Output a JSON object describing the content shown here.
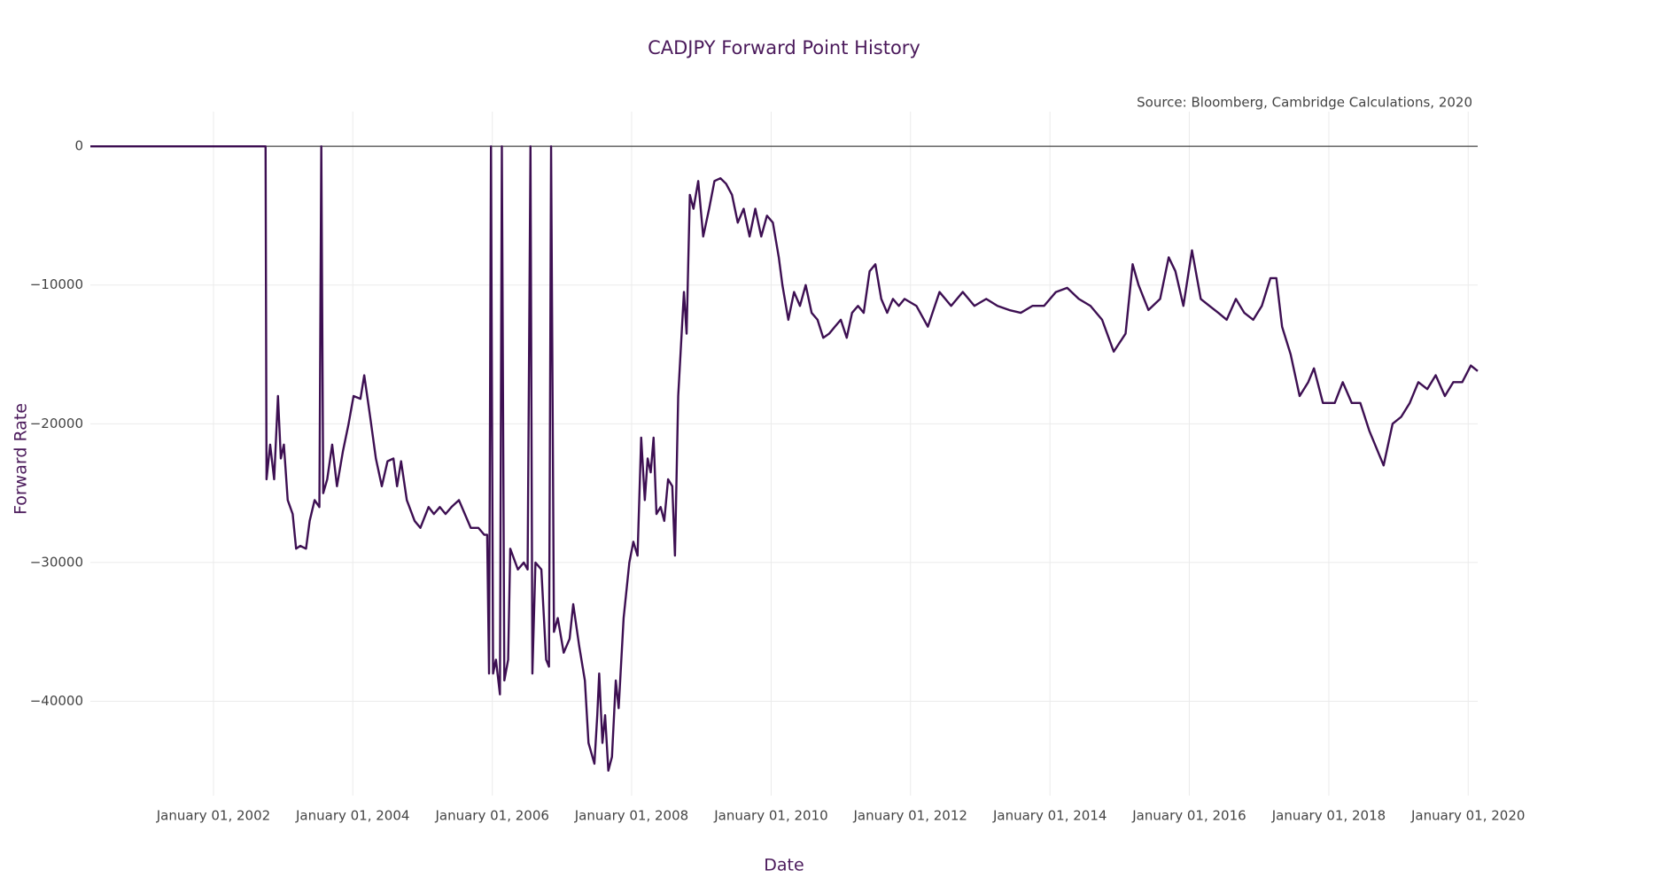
{
  "chart_data": {
    "type": "line",
    "title": "CADJPY Forward Point History",
    "annotation": "Source: Bloomberg, Cambridge Calculations, 2020",
    "x_label": "Date",
    "y_label": "Forward Rate",
    "grid": true,
    "xlim": [
      "2000-03-27",
      "2020-02-20"
    ],
    "ylim": [
      -46800,
      2500
    ],
    "xticks": [
      {
        "value": "2002-01-01",
        "label": "January 01, 2002"
      },
      {
        "value": "2004-01-01",
        "label": "January 01, 2004"
      },
      {
        "value": "2006-01-01",
        "label": "January 01, 2006"
      },
      {
        "value": "2008-01-01",
        "label": "January 01, 2008"
      },
      {
        "value": "2010-01-01",
        "label": "January 01, 2010"
      },
      {
        "value": "2012-01-01",
        "label": "January 01, 2012"
      },
      {
        "value": "2014-01-01",
        "label": "January 01, 2014"
      },
      {
        "value": "2016-01-01",
        "label": "January 01, 2016"
      },
      {
        "value": "2018-01-01",
        "label": "January 01, 2018"
      },
      {
        "value": "2020-01-01",
        "label": "January 01, 2020"
      }
    ],
    "yticks": [
      0,
      {
        "value": -10000,
        "label": "−10000"
      },
      {
        "value": -20000,
        "label": "−20000"
      },
      {
        "value": -30000,
        "label": "−30000"
      },
      {
        "value": -40000,
        "label": "−40000"
      }
    ],
    "x": [
      "2000-03-27",
      "2002-10-01",
      "2002-10-06",
      "2002-10-25",
      "2002-11-15",
      "2002-12-05",
      "2002-12-20",
      "2003-01-05",
      "2003-01-25",
      "2003-02-20",
      "2003-03-10",
      "2003-04-01",
      "2003-05-01",
      "2003-05-20",
      "2003-06-15",
      "2003-07-10",
      "2003-07-20",
      "2003-07-30",
      "2003-08-20",
      "2003-09-15",
      "2003-10-10",
      "2003-11-10",
      "2003-12-10",
      "2004-01-05",
      "2004-02-10",
      "2004-03-01",
      "2004-04-01",
      "2004-05-01",
      "2004-06-01",
      "2004-07-01",
      "2004-08-01",
      "2004-08-20",
      "2004-09-10",
      "2004-10-10",
      "2004-11-20",
      "2004-12-20",
      "2005-02-01",
      "2005-03-01",
      "2005-04-01",
      "2005-05-01",
      "2005-06-01",
      "2005-07-10",
      "2005-08-10",
      "2005-09-10",
      "2005-10-20",
      "2005-11-20",
      "2005-12-05",
      "2005-12-15",
      "2005-12-25",
      "2006-01-05",
      "2006-01-20",
      "2006-02-10",
      "2006-02-20",
      "2006-03-05",
      "2006-03-25",
      "2006-04-05",
      "2006-05-15",
      "2006-06-15",
      "2006-07-05",
      "2006-07-20",
      "2006-07-30",
      "2006-08-15",
      "2006-09-15",
      "2006-10-10",
      "2006-10-25",
      "2006-11-05",
      "2006-11-20",
      "2006-12-10",
      "2007-01-10",
      "2007-02-10",
      "2007-03-01",
      "2007-04-01",
      "2007-05-01",
      "2007-05-20",
      "2007-06-20",
      "2007-07-05",
      "2007-07-15",
      "2007-08-01",
      "2007-08-15",
      "2007-09-01",
      "2007-09-20",
      "2007-10-10",
      "2007-10-25",
      "2007-11-20",
      "2007-12-20",
      "2008-01-10",
      "2008-02-01",
      "2008-02-20",
      "2008-03-10",
      "2008-03-25",
      "2008-04-10",
      "2008-04-25",
      "2008-05-10",
      "2008-06-01",
      "2008-06-20",
      "2008-07-10",
      "2008-08-01",
      "2008-08-15",
      "2008-09-01",
      "2008-10-01",
      "2008-10-15",
      "2008-11-01",
      "2008-11-20",
      "2008-12-15",
      "2009-01-10",
      "2009-02-10",
      "2009-03-10",
      "2009-04-10",
      "2009-05-10",
      "2009-06-10",
      "2009-07-10",
      "2009-08-10",
      "2009-09-10",
      "2009-10-10",
      "2009-11-10",
      "2009-12-10",
      "2010-01-10",
      "2010-02-10",
      "2010-03-01",
      "2010-04-01",
      "2010-05-01",
      "2010-06-01",
      "2010-07-01",
      "2010-08-01",
      "2010-09-01",
      "2010-10-01",
      "2010-11-01",
      "2010-12-01",
      "2011-01-01",
      "2011-02-01",
      "2011-03-01",
      "2011-04-01",
      "2011-05-01",
      "2011-06-01",
      "2011-07-01",
      "2011-08-01",
      "2011-09-01",
      "2011-10-01",
      "2011-11-01",
      "2011-12-01",
      "2012-02-01",
      "2012-04-01",
      "2012-06-01",
      "2012-08-01",
      "2012-10-01",
      "2012-12-01",
      "2013-02-01",
      "2013-04-01",
      "2013-06-01",
      "2013-08-01",
      "2013-10-01",
      "2013-12-01",
      "2014-02-01",
      "2014-04-01",
      "2014-06-01",
      "2014-08-01",
      "2014-10-01",
      "2014-12-01",
      "2015-02-01",
      "2015-03-10",
      "2015-04-10",
      "2015-06-01",
      "2015-08-01",
      "2015-09-15",
      "2015-10-20",
      "2015-12-01",
      "2016-01-15",
      "2016-03-01",
      "2016-04-15",
      "2016-06-01",
      "2016-07-15",
      "2016-09-01",
      "2016-10-15",
      "2016-12-01",
      "2017-01-15",
      "2017-03-01",
      "2017-04-01",
      "2017-05-01",
      "2017-06-15",
      "2017-08-01",
      "2017-09-15",
      "2017-10-15",
      "2017-12-01",
      "2018-02-01",
      "2018-03-15",
      "2018-05-01",
      "2018-06-15",
      "2018-08-01",
      "2018-09-15",
      "2018-10-15",
      "2018-12-01",
      "2019-01-15",
      "2019-03-01",
      "2019-04-15",
      "2019-06-01",
      "2019-07-15",
      "2019-09-01",
      "2019-10-15",
      "2019-12-01",
      "2020-01-15",
      "2020-02-20"
    ],
    "series": [
      {
        "color": "#3d0f52",
        "values": [
          0,
          0,
          -24000,
          -21500,
          -24000,
          -18000,
          -22500,
          -21500,
          -25500,
          -26500,
          -29000,
          -28800,
          -29000,
          -27000,
          -25500,
          -26000,
          0,
          -25000,
          -24000,
          -21500,
          -24500,
          -22000,
          -20000,
          -18000,
          -18200,
          -16500,
          -19500,
          -22500,
          -24500,
          -22700,
          -22500,
          -24500,
          -22700,
          -25500,
          -27000,
          -27500,
          -26000,
          -26500,
          -26000,
          -26500,
          -26000,
          -25500,
          -26500,
          -27500,
          -27500,
          -28000,
          -28000,
          -38000,
          0,
          -38000,
          -37000,
          -39500,
          0,
          -38500,
          -37000,
          -29000,
          -30500,
          -30000,
          -30500,
          0,
          -38000,
          -30000,
          -30500,
          -37000,
          -37500,
          0,
          -35000,
          -34000,
          -36500,
          -35500,
          -33000,
          -36000,
          -38500,
          -43000,
          -44500,
          -41000,
          -38000,
          -43000,
          -41000,
          -45000,
          -44000,
          -38500,
          -40500,
          -34000,
          -30000,
          -28500,
          -29500,
          -21000,
          -25500,
          -22500,
          -23500,
          -21000,
          -26500,
          -26000,
          -27000,
          -24000,
          -24500,
          -29500,
          -18000,
          -10500,
          -13500,
          -3500,
          -4500,
          -2500,
          -6500,
          -4500,
          -2500,
          -2300,
          -2700,
          -3500,
          -5500,
          -4500,
          -6500,
          -4500,
          -6500,
          -5000,
          -5500,
          -8000,
          -10000,
          -12500,
          -10500,
          -11500,
          -10000,
          -12000,
          -12500,
          -13800,
          -13500,
          -13000,
          -12500,
          -13800,
          -12000,
          -11500,
          -12000,
          -9000,
          -8500,
          -11000,
          -12000,
          -11000,
          -11500,
          -11000,
          -11500,
          -13000,
          -10500,
          -11500,
          -10500,
          -11500,
          -11000,
          -11500,
          -11800,
          -12000,
          -11500,
          -11500,
          -10500,
          -10200,
          -11000,
          -11500,
          -12500,
          -14800,
          -13500,
          -8500,
          -10000,
          -11800,
          -11000,
          -8000,
          -9000,
          -11500,
          -7500,
          -11000,
          -11500,
          -12000,
          -12500,
          -11000,
          -12000,
          -12500,
          -11500,
          -9500,
          -9500,
          -13000,
          -15000,
          -18000,
          -17000,
          -16000,
          -18500,
          -18500,
          -17000,
          -18500,
          -18500,
          -20500,
          -22000,
          -23000,
          -20000,
          -19500,
          -18500,
          -17000,
          -17500,
          -16500,
          -18000,
          -17000,
          -17000,
          -15800,
          -16200
        ]
      }
    ]
  }
}
